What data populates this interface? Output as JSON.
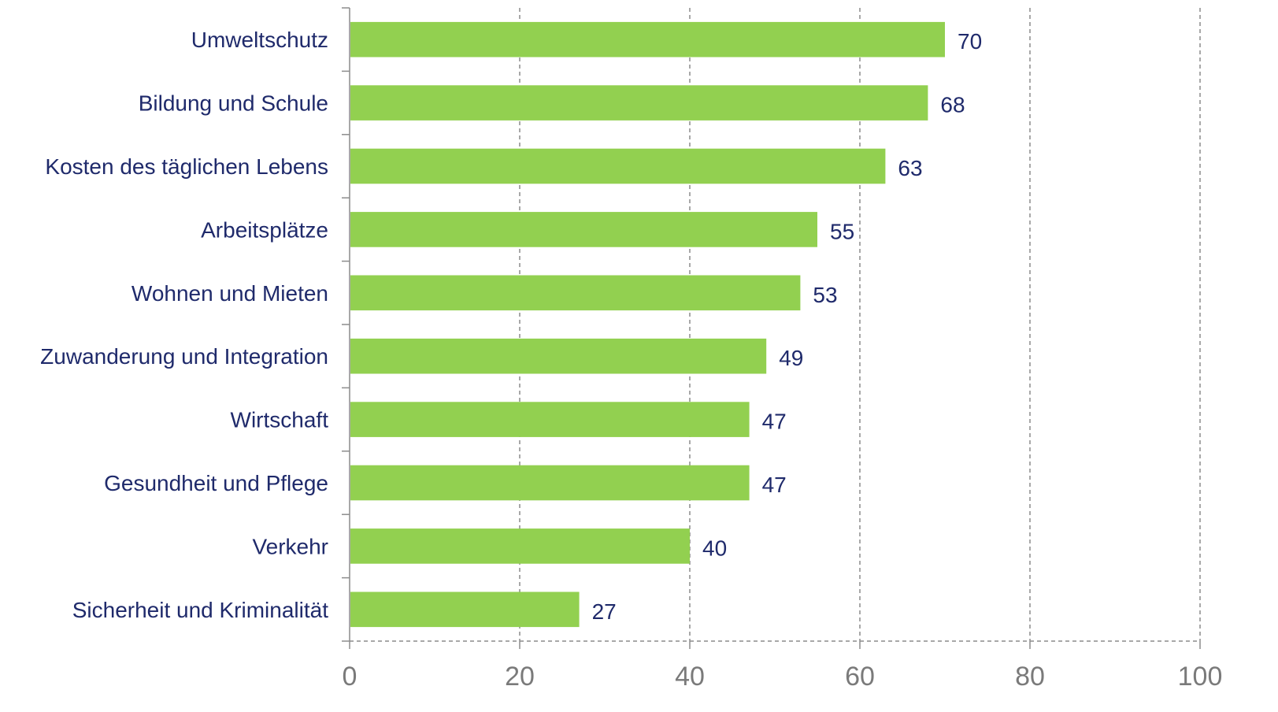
{
  "chart_data": {
    "type": "bar",
    "orientation": "horizontal",
    "categories": [
      "Umweltschutz",
      "Bildung und Schule",
      "Kosten des täglichen Lebens",
      "Arbeitsplätze",
      "Wohnen und Mieten",
      "Zuwanderung und Integration",
      "Wirtschaft",
      "Gesundheit und Pflege",
      "Verkehr",
      "Sicherheit und Kriminalität"
    ],
    "values": [
      70,
      68,
      63,
      55,
      53,
      49,
      47,
      47,
      40,
      27
    ],
    "data_labels": [
      "70",
      "68",
      "63",
      "55",
      "53",
      "49",
      "47",
      "47",
      "40",
      "27"
    ],
    "xlim": [
      0,
      100
    ],
    "xticks": [
      0,
      20,
      40,
      60,
      80,
      100
    ],
    "xtick_labels": [
      "0",
      "20",
      "40",
      "60",
      "80",
      "100"
    ],
    "grid": "vertical dashed",
    "legend": "none",
    "colors": {
      "bar": "#92d050",
      "label_text": "#1f2a6b",
      "tick_text": "#7a7a7a",
      "grid": "#8c8c8c"
    }
  }
}
